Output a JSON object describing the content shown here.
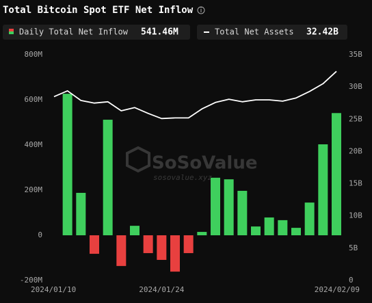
{
  "chart_data": {
    "type": "bar_line",
    "title": "Total Bitcoin Spot ETF Net Inflow",
    "categories": [
      "2024/01/10",
      null,
      null,
      null,
      null,
      null,
      null,
      null,
      "2024/01/24",
      null,
      null,
      null,
      null,
      null,
      null,
      null,
      null,
      null,
      null,
      null,
      null,
      "2024/02/09"
    ],
    "series": [
      {
        "name": "Daily Total Net Inflow",
        "type": "bar",
        "color": "#3fcf5d",
        "negative_color": "#e8403f",
        "values": [
          null,
          627,
          188,
          -82,
          512,
          -136,
          42,
          -79,
          -109,
          -161,
          -79,
          15,
          255,
          248,
          197,
          39,
          79,
          67,
          33,
          145,
          403,
          541.46
        ]
      },
      {
        "name": "Total Net Assets",
        "type": "line",
        "color": "#ffffff",
        "axis": "y2",
        "values": [
          28.5,
          29.4,
          27.9,
          27.5,
          27.7,
          26.3,
          26.8,
          25.9,
          25.1,
          25.2,
          25.2,
          26.6,
          27.6,
          28.1,
          27.7,
          28.0,
          28.0,
          27.8,
          28.3,
          29.3,
          30.5,
          32.42
        ]
      }
    ],
    "legend_values": [
      "541.46M",
      "32.42B"
    ],
    "ylim": [
      -200,
      800
    ],
    "yticks": [
      {
        "value": -200,
        "label": "-200M"
      },
      0,
      {
        "value": 200,
        "label": "200M"
      },
      {
        "value": 400,
        "label": "400M"
      },
      {
        "value": 600,
        "label": "600M"
      },
      {
        "value": 800,
        "label": "800M"
      }
    ],
    "y2lim": [
      0,
      35
    ],
    "y2ticks": [
      0,
      {
        "value": 5,
        "label": "5B"
      },
      {
        "value": 10,
        "label": "10B"
      },
      {
        "value": 15,
        "label": "15B"
      },
      {
        "value": 20,
        "label": "20B"
      },
      {
        "value": 25,
        "label": "25B"
      },
      {
        "value": 30,
        "label": "30B"
      },
      {
        "value": 35,
        "label": "35B"
      }
    ],
    "watermark": [
      "SoSoValue",
      "sosovalue.xyz"
    ],
    "grid": false
  }
}
